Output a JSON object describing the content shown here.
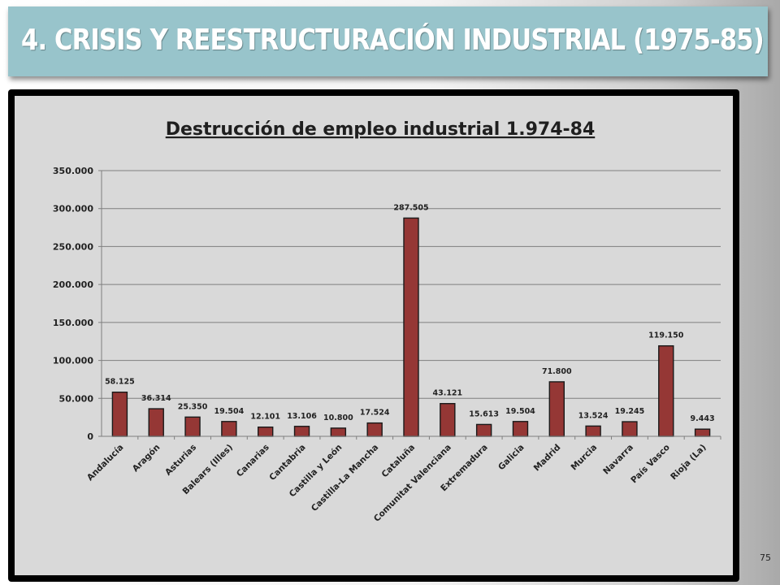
{
  "slide": {
    "title": "4. CRISIS Y REESTRUCTURACIÓN INDUSTRIAL (1975-85)",
    "page_number": "75"
  },
  "colors": {
    "banner": "#98c4cb",
    "bar": "#953735",
    "plot_background": "#d9d9d9"
  },
  "chart_data": {
    "type": "bar",
    "title": "Destrucción de empleo industrial 1.974-84",
    "xlabel": "",
    "ylabel": "",
    "ylim": [
      0,
      350000
    ],
    "yticks": [
      0,
      50000,
      100000,
      150000,
      200000,
      250000,
      300000,
      350000
    ],
    "ytick_labels": [
      "0",
      "50.000",
      "100.000",
      "150.000",
      "200.000",
      "250.000",
      "300.000",
      "350.000"
    ],
    "grid": true,
    "legend": "none",
    "categories": [
      "Andalucía",
      "Aragón",
      "Asturias",
      "Balears (Illes)",
      "Canarias",
      "Cantabria",
      "Castilla y León",
      "Castilla-La Mancha",
      "Cataluña",
      "Comunitat Valenciana",
      "Extremadura",
      "Galicia",
      "Madrid",
      "Murcia",
      "Navarra",
      "País Vasco",
      "Rioja (La)"
    ],
    "values": [
      58125,
      36314,
      25350,
      19504,
      12101,
      13106,
      10800,
      17524,
      287505,
      43121,
      15613,
      19504,
      71800,
      13524,
      19245,
      119150,
      9443
    ],
    "data_labels": [
      "58.125",
      "36.314",
      "25.350",
      "19.504",
      "12.101",
      "13.106",
      "10.800",
      "17.524",
      "287.505",
      "43.121",
      "15.613",
      "19.504",
      "71.800",
      "13.524",
      "19.245",
      "119.150",
      "9.443"
    ]
  }
}
